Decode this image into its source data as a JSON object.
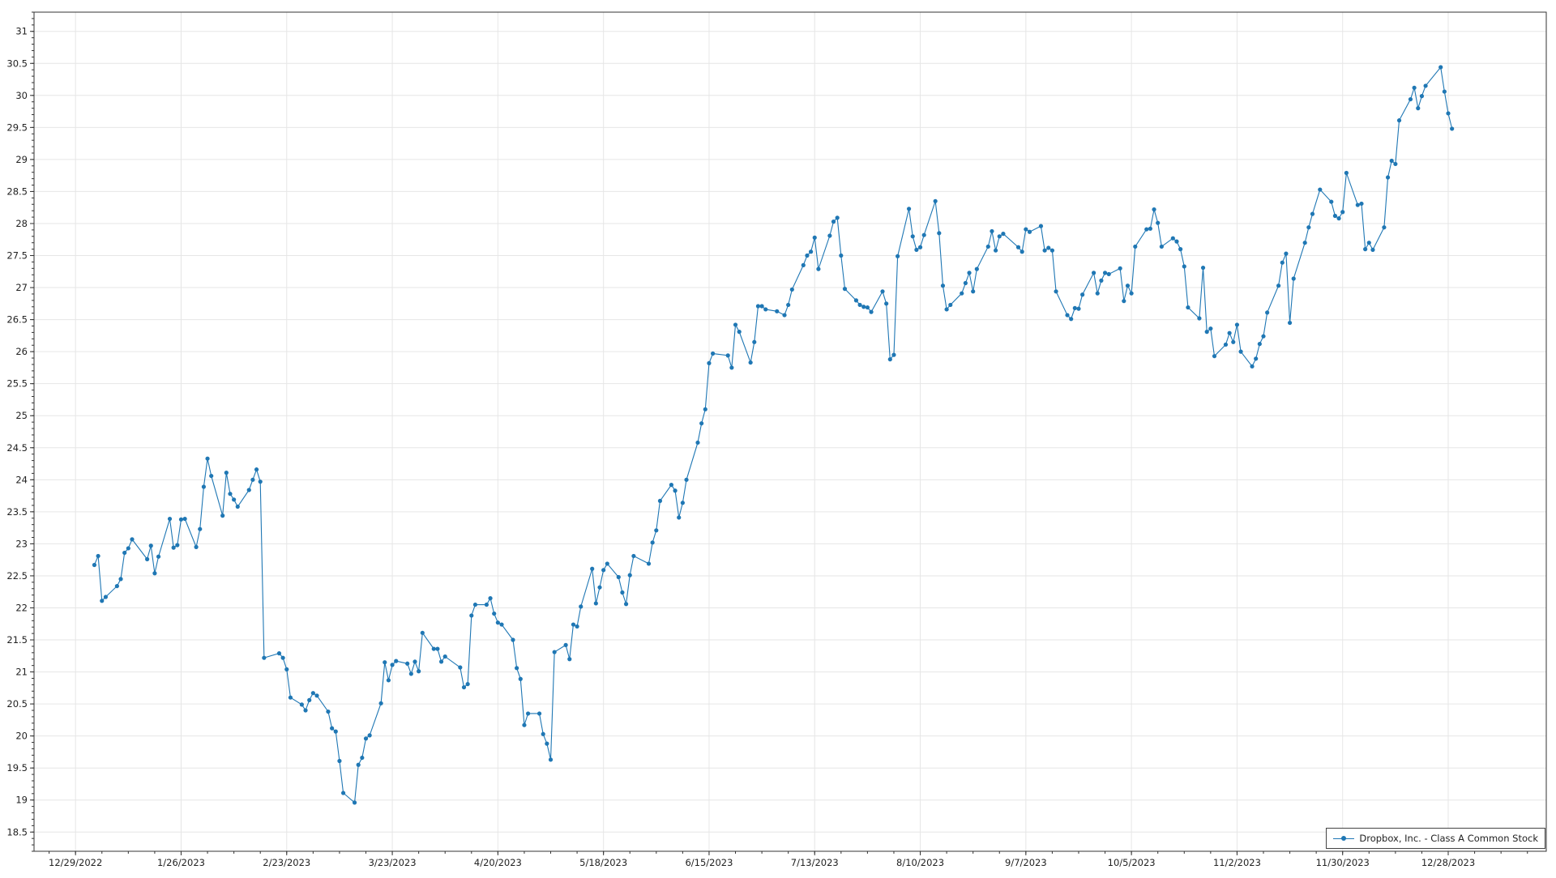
{
  "chart_data": {
    "type": "line",
    "title": "",
    "xlabel": "",
    "ylabel": "",
    "x_type": "date",
    "xlim": [
      "2022-12-18",
      "2024-01-23"
    ],
    "ylim": [
      18.2,
      31.3
    ],
    "y_ticks": [
      "18.5",
      "19",
      "19.5",
      "20",
      "20.5",
      "21",
      "21.5",
      "22",
      "22.5",
      "23",
      "23.5",
      "24",
      "24.5",
      "25",
      "25.5",
      "26",
      "26.5",
      "27",
      "27.5",
      "28",
      "28.5",
      "29",
      "29.5",
      "30",
      "30.5",
      "31"
    ],
    "x_ticks": [
      {
        "date": "2022-12-29",
        "label": "12/29/2022"
      },
      {
        "date": "2023-01-26",
        "label": "1/26/2023"
      },
      {
        "date": "2023-02-23",
        "label": "2/23/2023"
      },
      {
        "date": "2023-03-23",
        "label": "3/23/2023"
      },
      {
        "date": "2023-04-20",
        "label": "4/20/2023"
      },
      {
        "date": "2023-05-18",
        "label": "5/18/2023"
      },
      {
        "date": "2023-06-15",
        "label": "6/15/2023"
      },
      {
        "date": "2023-07-13",
        "label": "7/13/2023"
      },
      {
        "date": "2023-08-10",
        "label": "8/10/2023"
      },
      {
        "date": "2023-09-07",
        "label": "9/7/2023"
      },
      {
        "date": "2023-10-05",
        "label": "10/5/2023"
      },
      {
        "date": "2023-11-02",
        "label": "11/2/2023"
      },
      {
        "date": "2023-11-30",
        "label": "11/30/2023"
      },
      {
        "date": "2023-12-28",
        "label": "12/28/2023"
      }
    ],
    "grid": true,
    "legend_position": "bottom-right",
    "series": [
      {
        "name": "Dropbox, Inc. - Class A Common Stock",
        "color": "#1f77b4",
        "x": [
          "2023-01-03",
          "2023-01-04",
          "2023-01-05",
          "2023-01-06",
          "2023-01-09",
          "2023-01-10",
          "2023-01-11",
          "2023-01-12",
          "2023-01-13",
          "2023-01-17",
          "2023-01-18",
          "2023-01-19",
          "2023-01-20",
          "2023-01-23",
          "2023-01-24",
          "2023-01-25",
          "2023-01-26",
          "2023-01-27",
          "2023-01-30",
          "2023-01-31",
          "2023-02-01",
          "2023-02-02",
          "2023-02-03",
          "2023-02-06",
          "2023-02-07",
          "2023-02-08",
          "2023-02-09",
          "2023-02-10",
          "2023-02-13",
          "2023-02-14",
          "2023-02-15",
          "2023-02-16",
          "2023-02-17",
          "2023-02-21",
          "2023-02-22",
          "2023-02-23",
          "2023-02-24",
          "2023-02-27",
          "2023-02-28",
          "2023-03-01",
          "2023-03-02",
          "2023-03-03",
          "2023-03-06",
          "2023-03-07",
          "2023-03-08",
          "2023-03-09",
          "2023-03-10",
          "2023-03-13",
          "2023-03-14",
          "2023-03-15",
          "2023-03-16",
          "2023-03-17",
          "2023-03-20",
          "2023-03-21",
          "2023-03-22",
          "2023-03-23",
          "2023-03-24",
          "2023-03-27",
          "2023-03-28",
          "2023-03-29",
          "2023-03-30",
          "2023-03-31",
          "2023-04-03",
          "2023-04-04",
          "2023-04-05",
          "2023-04-06",
          "2023-04-10",
          "2023-04-11",
          "2023-04-12",
          "2023-04-13",
          "2023-04-14",
          "2023-04-17",
          "2023-04-18",
          "2023-04-19",
          "2023-04-20",
          "2023-04-21",
          "2023-04-24",
          "2023-04-25",
          "2023-04-26",
          "2023-04-27",
          "2023-04-28",
          "2023-05-01",
          "2023-05-02",
          "2023-05-03",
          "2023-05-04",
          "2023-05-05",
          "2023-05-08",
          "2023-05-09",
          "2023-05-10",
          "2023-05-11",
          "2023-05-12",
          "2023-05-15",
          "2023-05-16",
          "2023-05-17",
          "2023-05-18",
          "2023-05-19",
          "2023-05-22",
          "2023-05-23",
          "2023-05-24",
          "2023-05-25",
          "2023-05-26",
          "2023-05-30",
          "2023-05-31",
          "2023-06-01",
          "2023-06-02",
          "2023-06-05",
          "2023-06-06",
          "2023-06-07",
          "2023-06-08",
          "2023-06-09",
          "2023-06-12",
          "2023-06-13",
          "2023-06-14",
          "2023-06-15",
          "2023-06-16",
          "2023-06-20",
          "2023-06-21",
          "2023-06-22",
          "2023-06-23",
          "2023-06-26",
          "2023-06-27",
          "2023-06-28",
          "2023-06-29",
          "2023-06-30",
          "2023-07-03",
          "2023-07-05",
          "2023-07-06",
          "2023-07-07",
          "2023-07-10",
          "2023-07-11",
          "2023-07-12",
          "2023-07-13",
          "2023-07-14",
          "2023-07-17",
          "2023-07-18",
          "2023-07-19",
          "2023-07-20",
          "2023-07-21",
          "2023-07-24",
          "2023-07-25",
          "2023-07-26",
          "2023-07-27",
          "2023-07-28",
          "2023-07-31",
          "2023-08-01",
          "2023-08-02",
          "2023-08-03",
          "2023-08-04",
          "2023-08-07",
          "2023-08-08",
          "2023-08-09",
          "2023-08-10",
          "2023-08-11",
          "2023-08-14",
          "2023-08-15",
          "2023-08-16",
          "2023-08-17",
          "2023-08-18",
          "2023-08-21",
          "2023-08-22",
          "2023-08-23",
          "2023-08-24",
          "2023-08-25",
          "2023-08-28",
          "2023-08-29",
          "2023-08-30",
          "2023-08-31",
          "2023-09-01",
          "2023-09-05",
          "2023-09-06",
          "2023-09-07",
          "2023-09-08",
          "2023-09-11",
          "2023-09-12",
          "2023-09-13",
          "2023-09-14",
          "2023-09-15",
          "2023-09-18",
          "2023-09-19",
          "2023-09-20",
          "2023-09-21",
          "2023-09-22",
          "2023-09-25",
          "2023-09-26",
          "2023-09-27",
          "2023-09-28",
          "2023-09-29",
          "2023-10-02",
          "2023-10-03",
          "2023-10-04",
          "2023-10-05",
          "2023-10-06",
          "2023-10-09",
          "2023-10-10",
          "2023-10-11",
          "2023-10-12",
          "2023-10-13",
          "2023-10-16",
          "2023-10-17",
          "2023-10-18",
          "2023-10-19",
          "2023-10-20",
          "2023-10-23",
          "2023-10-24",
          "2023-10-25",
          "2023-10-26",
          "2023-10-27",
          "2023-10-30",
          "2023-10-31",
          "2023-11-01",
          "2023-11-02",
          "2023-11-03",
          "2023-11-06",
          "2023-11-07",
          "2023-11-08",
          "2023-11-09",
          "2023-11-10",
          "2023-11-13",
          "2023-11-14",
          "2023-11-15",
          "2023-11-16",
          "2023-11-17",
          "2023-11-20",
          "2023-11-21",
          "2023-11-22",
          "2023-11-24",
          "2023-11-27",
          "2023-11-28",
          "2023-11-29",
          "2023-11-30",
          "2023-12-01",
          "2023-12-04",
          "2023-12-05",
          "2023-12-06",
          "2023-12-07",
          "2023-12-08",
          "2023-12-11",
          "2023-12-12",
          "2023-12-13",
          "2023-12-14",
          "2023-12-15",
          "2023-12-18",
          "2023-12-19",
          "2023-12-20",
          "2023-12-21",
          "2023-12-22",
          "2023-12-26",
          "2023-12-27",
          "2023-12-28",
          "2023-12-29"
        ],
        "values": [
          22.67,
          22.81,
          22.11,
          22.17,
          22.34,
          22.45,
          22.86,
          22.93,
          23.07,
          22.76,
          22.97,
          22.54,
          22.8,
          23.39,
          22.94,
          22.98,
          23.38,
          23.39,
          22.95,
          23.23,
          23.89,
          24.33,
          24.06,
          23.44,
          24.11,
          23.78,
          23.69,
          23.58,
          23.84,
          24.0,
          24.16,
          23.97,
          21.22,
          21.29,
          21.22,
          21.04,
          20.6,
          20.49,
          20.4,
          20.56,
          20.67,
          20.63,
          20.38,
          20.12,
          20.07,
          19.61,
          19.11,
          18.96,
          19.55,
          19.66,
          19.96,
          20.01,
          20.51,
          21.15,
          20.87,
          21.11,
          21.17,
          21.13,
          20.97,
          21.16,
          21.01,
          21.61,
          21.36,
          21.36,
          21.16,
          21.24,
          21.07,
          20.76,
          20.81,
          21.88,
          22.05,
          22.05,
          22.15,
          21.91,
          21.77,
          21.74,
          21.5,
          21.06,
          20.89,
          20.17,
          20.35,
          20.35,
          20.03,
          19.88,
          19.63,
          21.31,
          21.42,
          21.2,
          21.74,
          21.71,
          22.02,
          22.61,
          22.07,
          22.32,
          22.59,
          22.69,
          22.48,
          22.24,
          22.06,
          22.51,
          22.81,
          22.69,
          23.02,
          23.21,
          23.67,
          23.92,
          23.83,
          23.41,
          23.64,
          24.0,
          24.58,
          24.88,
          25.1,
          25.82,
          25.97,
          25.94,
          25.75,
          26.42,
          26.31,
          25.83,
          26.15,
          26.71,
          26.71,
          26.66,
          26.63,
          26.57,
          26.73,
          26.97,
          27.35,
          27.5,
          27.56,
          27.78,
          27.29,
          27.81,
          28.03,
          28.09,
          27.5,
          26.98,
          26.8,
          26.73,
          26.7,
          26.69,
          26.62,
          26.94,
          26.75,
          25.88,
          25.95,
          27.49,
          28.23,
          27.8,
          27.59,
          27.63,
          27.82,
          28.35,
          27.85,
          27.03,
          26.66,
          26.73,
          26.91,
          27.07,
          27.23,
          26.94,
          27.29,
          27.64,
          27.88,
          27.58,
          27.8,
          27.84,
          27.63,
          27.56,
          27.91,
          27.87,
          27.96,
          27.58,
          27.62,
          27.58,
          26.94,
          26.57,
          26.51,
          26.68,
          26.67,
          26.89,
          27.23,
          26.91,
          27.11,
          27.23,
          27.21,
          27.3,
          26.79,
          27.03,
          26.91,
          27.64,
          27.91,
          27.92,
          28.22,
          28.01,
          27.64,
          27.77,
          27.72,
          27.6,
          27.33,
          26.69,
          26.52,
          27.31,
          26.31,
          26.36,
          25.93,
          26.11,
          26.29,
          26.15,
          26.42,
          26.0,
          25.77,
          25.89,
          26.12,
          26.24,
          26.61,
          27.03,
          27.39,
          27.53,
          26.45,
          27.14,
          27.7,
          27.94,
          28.15,
          28.53,
          28.34,
          28.12,
          28.08,
          28.18,
          28.79,
          28.29,
          28.31,
          27.6,
          27.7,
          27.59,
          27.94,
          28.72,
          28.98,
          28.93,
          29.61,
          29.94,
          30.12,
          29.8,
          29.99,
          30.15,
          30.44,
          30.06,
          29.72,
          29.48
        ]
      }
    ]
  }
}
